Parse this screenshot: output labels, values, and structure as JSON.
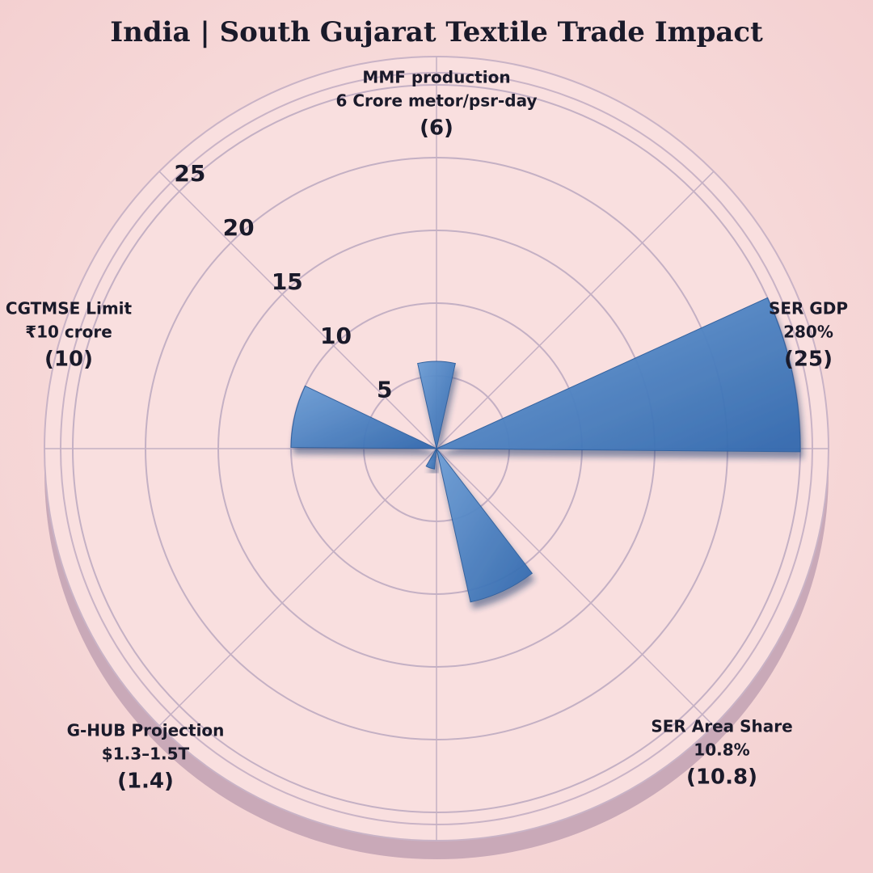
{
  "chart_data": {
    "type": "rose",
    "title": "India | South Gujarat Textile Trade Impact",
    "categories": [
      "MMF production",
      "SER GDP",
      "SER Area Share",
      "G-HUB Projection",
      "CGTMSE Limit"
    ],
    "category_details": [
      "6 Crore metor/psr-day",
      "280%",
      "10.8%",
      "$1.3–1.5T",
      "₹10 crore"
    ],
    "values": [
      6,
      25,
      10.8,
      1.4,
      10
    ],
    "value_labels": [
      "(6)",
      "(25)",
      "(10.8)",
      "(1.4)",
      "(10)"
    ],
    "color": "#3f7cc4",
    "rlim": [
      0,
      25
    ],
    "rticks": [
      5,
      10,
      15,
      20,
      25
    ],
    "grid": true
  }
}
